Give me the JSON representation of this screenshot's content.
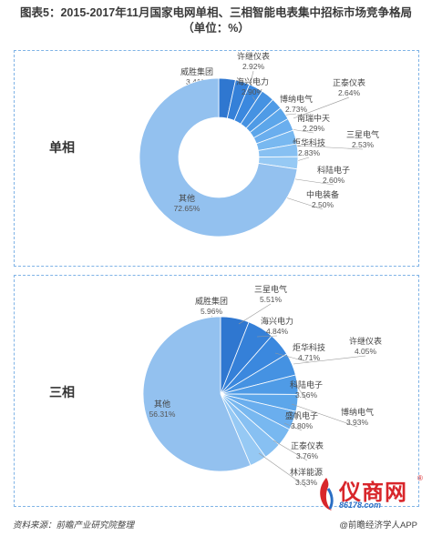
{
  "title": {
    "line1": "图表5：2015-2017年11月国家电网单相、三相智能电表集中招标市场竞争格局",
    "line2": "（单位：%）"
  },
  "chart_data": [
    {
      "type": "pie",
      "donut": true,
      "label": "单相",
      "slices": [
        {
          "name": "威胜集团",
          "value": 3.41
        },
        {
          "name": "许继仪表",
          "value": 2.92
        },
        {
          "name": "海兴电力",
          "value": 2.9
        },
        {
          "name": "博纳电气",
          "value": 2.73
        },
        {
          "name": "南瑞中天",
          "value": 2.29
        },
        {
          "name": "正泰仪表",
          "value": 2.64
        },
        {
          "name": "三星电气",
          "value": 2.53
        },
        {
          "name": "炬华科技",
          "value": 2.83
        },
        {
          "name": "科陆电子",
          "value": 2.6
        },
        {
          "name": "中电装备",
          "value": 2.5
        },
        {
          "name": "其他",
          "value": 72.65
        }
      ],
      "value_format": "%"
    },
    {
      "type": "pie",
      "donut": true,
      "label": "三相",
      "slices": [
        {
          "name": "威胜集团",
          "value": 5.96
        },
        {
          "name": "三星电气",
          "value": 5.51
        },
        {
          "name": "海兴电力",
          "value": 4.84
        },
        {
          "name": "炬华科技",
          "value": 4.71
        },
        {
          "name": "许继仪表",
          "value": 4.05
        },
        {
          "name": "科陆电子",
          "value": 3.56
        },
        {
          "name": "博纳电气",
          "value": 3.93
        },
        {
          "name": "盛帆电子",
          "value": 3.8
        },
        {
          "name": "正泰仪表",
          "value": 3.76
        },
        {
          "name": "林洋能源",
          "value": 3.53
        },
        {
          "name": "其他",
          "value": 56.31
        }
      ],
      "value_format": "%"
    }
  ],
  "colors": {
    "major_slices": [
      "#2f77d0",
      "#3580d8",
      "#3b88de",
      "#4592e2",
      "#4f9be6",
      "#5ca6ea",
      "#6aaeee",
      "#78b8f0",
      "#87c0f2",
      "#96c9f4"
    ],
    "other_slice": "#93c1ef",
    "leader_line": "#9a9a9a",
    "border": "#7fb3e6"
  },
  "footer": {
    "source": "资料来源：前瞻产业研究院整理",
    "app": "@前瞻经济学人APP"
  },
  "watermark": {
    "text": "仪商网",
    "url": "86178.com",
    "registered": "®"
  }
}
